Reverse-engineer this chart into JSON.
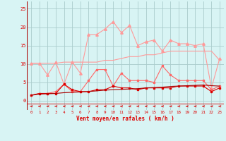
{
  "x": [
    0,
    1,
    2,
    3,
    4,
    5,
    6,
    7,
    8,
    9,
    10,
    11,
    12,
    13,
    14,
    15,
    16,
    17,
    18,
    19,
    20,
    21,
    22,
    23
  ],
  "line1": [
    10.2,
    10.2,
    10.2,
    10.2,
    10.5,
    10.5,
    10.5,
    10.5,
    10.5,
    11.0,
    11.0,
    11.5,
    12.0,
    12.0,
    12.5,
    12.5,
    13.0,
    13.5,
    13.5,
    13.5,
    13.5,
    13.5,
    13.5,
    11.0
  ],
  "line2": [
    10.2,
    10.2,
    7.0,
    10.5,
    4.5,
    10.5,
    7.5,
    18.0,
    18.0,
    19.5,
    21.5,
    18.5,
    20.5,
    15.0,
    16.0,
    16.5,
    13.5,
    16.5,
    15.5,
    15.5,
    15.0,
    15.5,
    3.5,
    11.5
  ],
  "line3": [
    1.5,
    2.0,
    2.0,
    2.5,
    4.5,
    2.5,
    2.5,
    5.5,
    8.5,
    8.5,
    4.0,
    7.5,
    5.5,
    5.5,
    5.5,
    5.0,
    9.5,
    7.0,
    5.5,
    5.5,
    5.5,
    5.5,
    3.0,
    4.0
  ],
  "line4": [
    1.5,
    2.0,
    2.0,
    2.0,
    4.5,
    3.0,
    2.5,
    2.5,
    3.0,
    3.0,
    4.0,
    3.5,
    3.5,
    3.0,
    3.5,
    3.5,
    3.5,
    3.5,
    4.0,
    4.0,
    4.0,
    4.0,
    2.5,
    3.5
  ],
  "line5": [
    1.5,
    1.8,
    1.9,
    2.0,
    2.2,
    2.3,
    2.4,
    2.5,
    2.7,
    2.9,
    3.0,
    3.1,
    3.2,
    3.3,
    3.5,
    3.6,
    3.7,
    3.9,
    4.0,
    4.1,
    4.2,
    4.3,
    4.1,
    4.0
  ],
  "color_light": "#FF9999",
  "color_medium": "#FF6666",
  "color_dark": "#DD0000",
  "color_vdark": "#AA0000",
  "bg_color": "#D8F4F4",
  "grid_color": "#AACCCC",
  "xlabel": "Vent moyen/en rafales ( km/h )",
  "yticks": [
    0,
    5,
    10,
    15,
    20,
    25
  ],
  "xticks": [
    0,
    1,
    2,
    3,
    4,
    5,
    6,
    7,
    8,
    9,
    10,
    11,
    12,
    13,
    14,
    15,
    16,
    17,
    18,
    19,
    20,
    21,
    22,
    23
  ],
  "ylim": [
    -2.5,
    27
  ],
  "xlim": [
    -0.5,
    23.5
  ]
}
